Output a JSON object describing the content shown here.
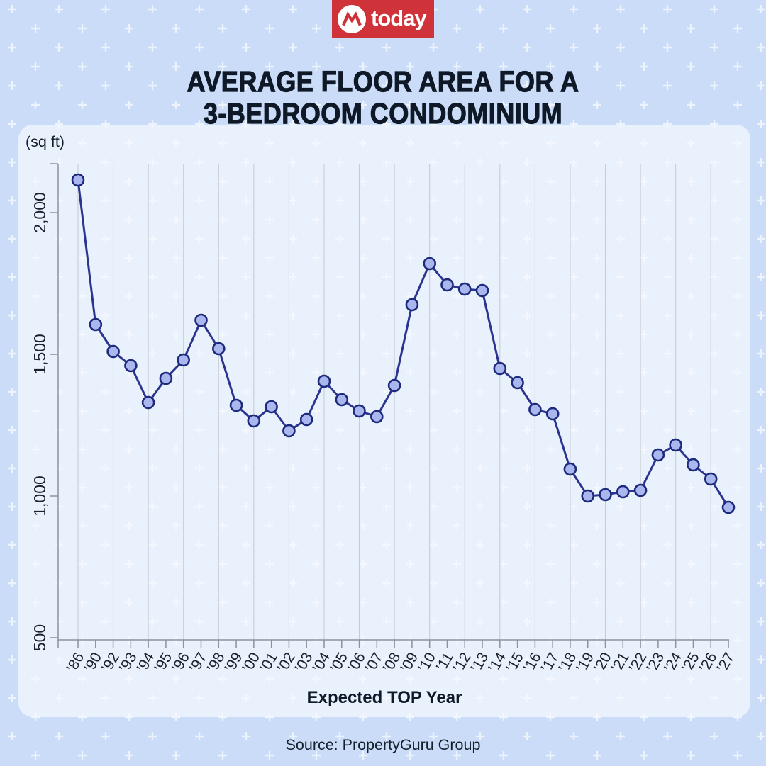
{
  "brand": {
    "logo_text": "today",
    "logo_bg_color": "#cf3339",
    "logo_icon": "mediacorp-m-icon"
  },
  "title": {
    "line1": "AVERAGE FLOOR AREA FOR A",
    "line2": "3-BEDROOM CONDOMINIUM"
  },
  "source": {
    "text": "Source: PropertyGuru Group"
  },
  "chart_data": {
    "type": "line",
    "title": "Average floor area for a 3-bedroom condominium",
    "unit_label": "(sq ft)",
    "ylabel": "(sq ft)",
    "xlabel": "Expected TOP Year",
    "categories": [
      "’86",
      "’90",
      "’92",
      "’93",
      "’94",
      "’95",
      "’96",
      "’97",
      "’98",
      "’99",
      "’00",
      "’01",
      "’02",
      "’03",
      "’04",
      "’05",
      "’06",
      "’07",
      "’08",
      "’09",
      "’10",
      "’11",
      "’12",
      "’13",
      "’14",
      "’15",
      "’16",
      "’17",
      "’18",
      "’19",
      "’20",
      "’21",
      "’22",
      "’23",
      "’24",
      "’25",
      "’26",
      "’27"
    ],
    "values": [
      2115,
      1605,
      1510,
      1460,
      1330,
      1415,
      1480,
      1620,
      1520,
      1320,
      1265,
      1315,
      1230,
      1270,
      1405,
      1340,
      1300,
      1280,
      1390,
      1675,
      1820,
      1745,
      1730,
      1725,
      1450,
      1400,
      1305,
      1290,
      1095,
      1000,
      1005,
      1015,
      1020,
      1145,
      1180,
      1110,
      1060,
      960
    ],
    "yticks": [
      500,
      1000,
      1500,
      2000
    ],
    "ytick_labels": [
      "500",
      "1,000",
      "1,500",
      "2,000"
    ],
    "ylim": [
      500,
      2170
    ],
    "grid": "vertical-gridlines-on-alternate-ticks",
    "legend_position": "none",
    "x_tick_rotation_deg": -60,
    "colors": {
      "line": "#2b3590",
      "marker_fill": "#aab6ee",
      "marker_stroke": "#1e2b7d",
      "grid": "#c9ccd4",
      "axis": "#8d929b",
      "label_text": "#1a2230"
    }
  }
}
